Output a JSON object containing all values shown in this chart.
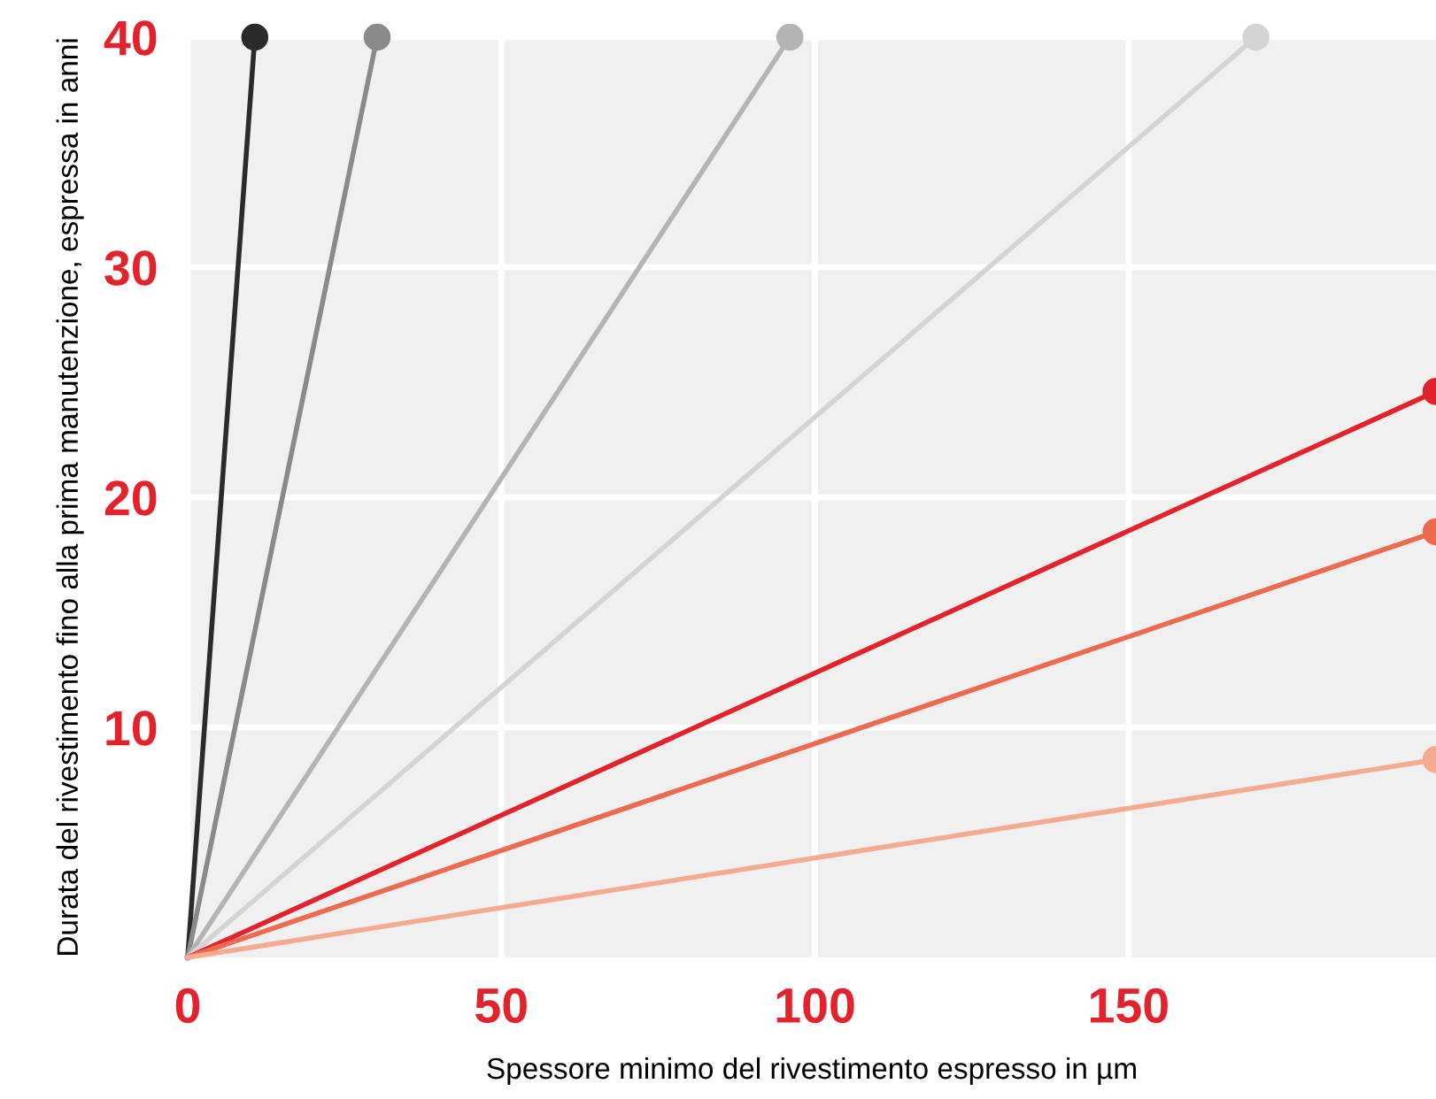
{
  "chart_data": {
    "type": "line",
    "xlabel": "Spessore minimo del rivestimento espresso in µm",
    "ylabel": "Durata del rivestimento fino alla prima manutenzione, espressa in anni",
    "xlim": [
      0,
      199
    ],
    "ylim": [
      0,
      40
    ],
    "xticks": [
      0,
      50,
      100,
      150
    ],
    "yticks": [
      10,
      20,
      30,
      40
    ],
    "grid": true,
    "marker": "circle",
    "line_style": "solid",
    "series": [
      {
        "color": "#2b2b2b",
        "x": [
          0,
          10.7
        ],
        "values": [
          0,
          40
        ]
      },
      {
        "color": "#8a8a8a",
        "x": [
          0,
          30.2
        ],
        "values": [
          0,
          40
        ]
      },
      {
        "color": "#b4b4b4",
        "x": [
          0,
          96
        ],
        "values": [
          0,
          40
        ]
      },
      {
        "color": "#d4d4d4",
        "x": [
          0,
          170.3
        ],
        "values": [
          0,
          40
        ]
      },
      {
        "color": "#e3222b",
        "x": [
          0,
          199
        ],
        "values": [
          0,
          24.6
        ]
      },
      {
        "color": "#ee6a4e",
        "x": [
          0,
          199
        ],
        "values": [
          0,
          18.5
        ]
      },
      {
        "color": "#f5ab8f",
        "x": [
          0,
          199
        ],
        "values": [
          0,
          8.6
        ]
      }
    ]
  }
}
